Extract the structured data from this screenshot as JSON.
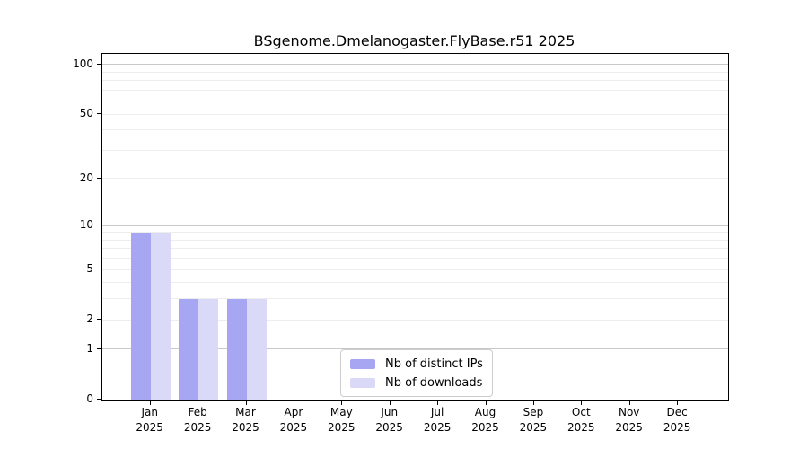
{
  "figure": {
    "title": "BSgenome.Dmelanogaster.FlyBase.r51 2025",
    "background_color": "#ffffff"
  },
  "chart_data": {
    "type": "bar",
    "title": "BSgenome.Dmelanogaster.FlyBase.r51 2025",
    "categories": [
      "Jan",
      "Feb",
      "Mar",
      "Apr",
      "May",
      "Jun",
      "Jul",
      "Aug",
      "Sep",
      "Oct",
      "Nov",
      "Dec"
    ],
    "category_year": "2025",
    "series": [
      {
        "name": "Nb of distinct IPs",
        "color": "#a6a6f2",
        "values": [
          9,
          3,
          3,
          0,
          0,
          0,
          0,
          0,
          0,
          0,
          0,
          0
        ]
      },
      {
        "name": "Nb of downloads",
        "color": "#dadaf8",
        "values": [
          9,
          3,
          3,
          0,
          0,
          0,
          0,
          0,
          0,
          0,
          0,
          0
        ]
      }
    ],
    "xlabel": "",
    "ylabel": "",
    "yscale": "log1p",
    "ylim": [
      0,
      116
    ],
    "yticks": [
      0,
      1,
      2,
      5,
      10,
      20,
      50,
      100
    ],
    "grid": {
      "orientation": "horizontal",
      "major_values": [
        1,
        10,
        100
      ],
      "minor_values": [
        2,
        3,
        4,
        5,
        6,
        7,
        8,
        9,
        20,
        30,
        40,
        50,
        60,
        70,
        80,
        90
      ],
      "major_color": "#c9c9c9",
      "minor_color": "#ededed"
    },
    "legend": {
      "position": "inside-bottom-center",
      "border_color": "#cccccc"
    },
    "axis_color": "#000000"
  }
}
